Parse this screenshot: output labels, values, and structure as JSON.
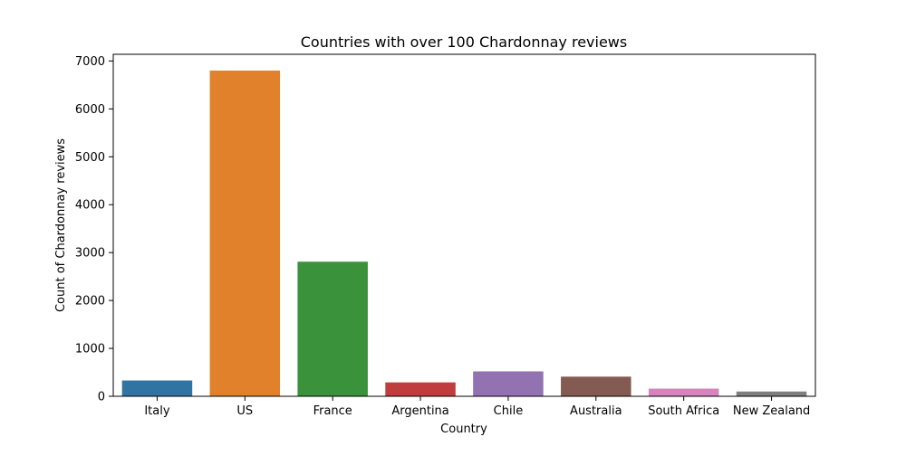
{
  "chart_data": {
    "type": "bar",
    "title": "Countries with over 100 Chardonnay reviews",
    "xlabel": "Country",
    "ylabel": "Count of Chardonnay reviews",
    "categories": [
      "Italy",
      "US",
      "France",
      "Argentina",
      "Chile",
      "Australia",
      "South Africa",
      "New Zealand"
    ],
    "values": [
      330,
      6800,
      2810,
      290,
      520,
      410,
      160,
      100
    ],
    "colors": [
      "#3274a1",
      "#e1812c",
      "#3a923a",
      "#c03d3e",
      "#9372b2",
      "#845b53",
      "#d684bd",
      "#7f7f7f"
    ],
    "ylim": [
      0,
      7140
    ],
    "yticks": [
      0,
      1000,
      2000,
      3000,
      4000,
      5000,
      6000,
      7000
    ],
    "ytick_labels": [
      "0",
      "1000",
      "2000",
      "3000",
      "4000",
      "5000",
      "6000",
      "7000"
    ],
    "grid": false,
    "legend": "none"
  }
}
